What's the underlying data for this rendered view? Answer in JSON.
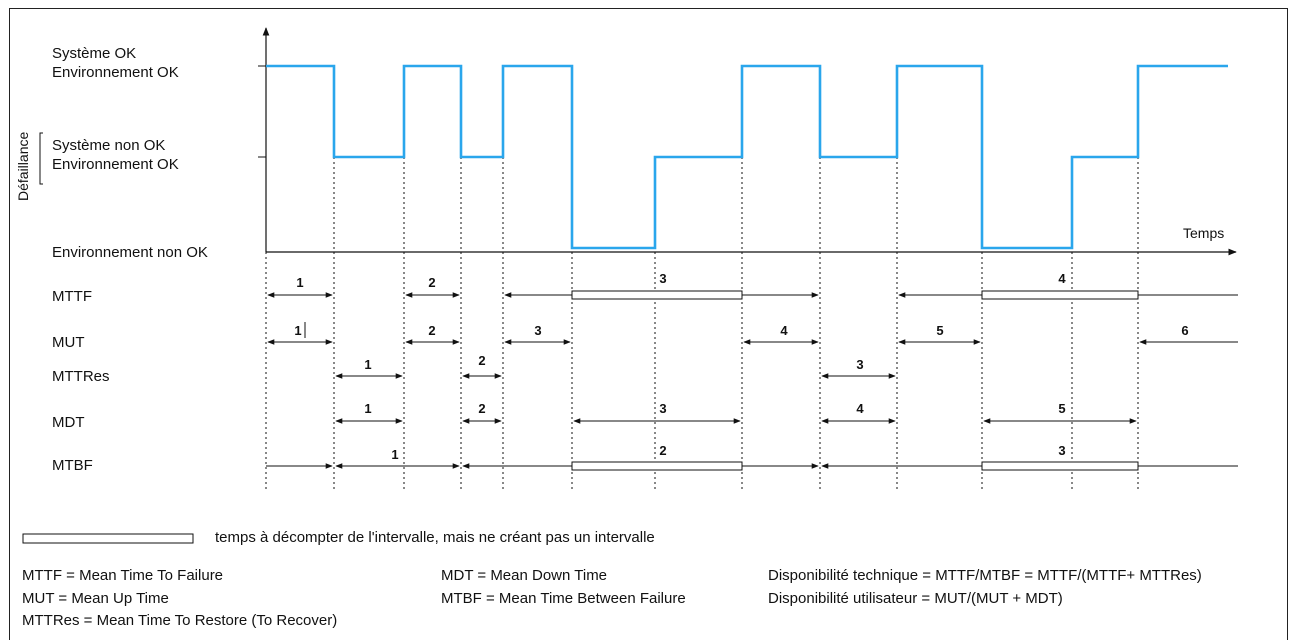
{
  "states": {
    "ok": "Système OK\nEnvironnement OK",
    "sys_nok": "Système non OK\nEnvironnement OK",
    "env_nok": "Environnement non OK"
  },
  "axis": {
    "y_label": "Défaillance",
    "x_label": "Temps"
  },
  "rows": [
    {
      "id": "mttf",
      "label": "MTTF",
      "numbers": [
        "1",
        "2",
        "3",
        "4"
      ]
    },
    {
      "id": "mut",
      "label": "MUT",
      "numbers": [
        "1",
        "2",
        "3",
        "4",
        "5",
        "6"
      ]
    },
    {
      "id": "mttres",
      "label": "MTTRes",
      "numbers": [
        "1",
        "2",
        "3"
      ]
    },
    {
      "id": "mdt",
      "label": "MDT",
      "numbers": [
        "1",
        "2",
        "3",
        "4",
        "5"
      ]
    },
    {
      "id": "mtbf",
      "label": "MTBF",
      "numbers": [
        "1",
        "2",
        "3"
      ]
    }
  ],
  "legend_text": "temps à décompter de l'intervalle, mais ne créant pas un intervalle",
  "definitions": [
    "MTTF = Mean Time To Failure",
    "MUT = Mean Up Time",
    "MTTRes = Mean Time To Restore (To Recover)",
    "MDT = Mean Down Time",
    "MTBF = Mean Time Between Failure",
    "Disponibilité technique = MTTF/MTBF = MTTF/(MTTF+ MTTRes)",
    "Disponibilité utilisateur = MUT/(MUT + MDT)"
  ],
  "colors": {
    "signal": "#2aa6ec",
    "line": "#111111"
  }
}
